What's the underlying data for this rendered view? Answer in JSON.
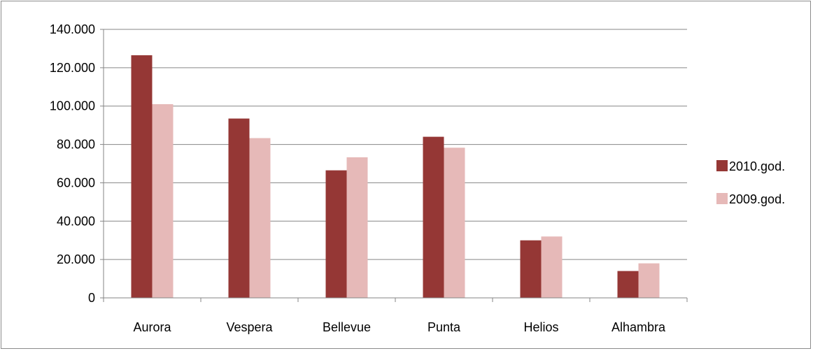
{
  "chart_data": {
    "type": "bar",
    "title": "",
    "xlabel": "",
    "ylabel": "",
    "categories": [
      "Aurora",
      "Vespera",
      "Bellevue",
      "Punta",
      "Helios",
      "Alhambra"
    ],
    "series": [
      {
        "name": "2010.god.",
        "color": "#953735",
        "values": [
          126500,
          93500,
          66500,
          84000,
          30000,
          14000
        ]
      },
      {
        "name": "2009.god.",
        "color": "#e6b9b8",
        "values": [
          101000,
          83300,
          73300,
          78300,
          32000,
          18000
        ]
      }
    ],
    "ylim": [
      0,
      140000
    ],
    "y_ticks": [
      0,
      20000,
      40000,
      60000,
      80000,
      100000,
      120000,
      140000
    ],
    "y_tick_labels": [
      "0",
      "20.000",
      "40.000",
      "60.000",
      "80.000",
      "100.000",
      "120.000",
      "140.000"
    ],
    "grid": true,
    "legend_position": "right"
  }
}
